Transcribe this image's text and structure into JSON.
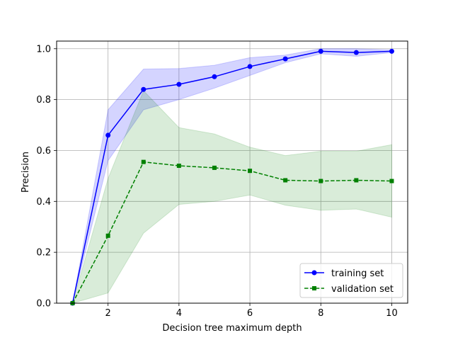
{
  "chart_data": {
    "type": "line",
    "title": "",
    "xlabel": "Decision tree maximum depth",
    "ylabel": "Precision",
    "xlim": [
      0.55,
      10.45
    ],
    "ylim": [
      0.0,
      1.03
    ],
    "xticks": [
      2,
      4,
      6,
      8,
      10
    ],
    "xtick_labels": [
      "2",
      "4",
      "6",
      "8",
      "10"
    ],
    "yticks": [
      0.0,
      0.2,
      0.4,
      0.6,
      0.8,
      1.0
    ],
    "ytick_labels": [
      "0.0",
      "0.2",
      "0.4",
      "0.6",
      "0.8",
      "1.0"
    ],
    "grid": true,
    "legend_position": "bottom-right",
    "x": [
      1,
      2,
      3,
      4,
      5,
      6,
      7,
      8,
      9,
      10
    ],
    "series": [
      {
        "name": "training set",
        "color": "#0000ff",
        "line_style": "solid",
        "marker": "circle",
        "values": [
          0.0,
          0.66,
          0.84,
          0.86,
          0.89,
          0.93,
          0.96,
          0.99,
          0.985,
          0.99
        ],
        "band_lower": [
          0.0,
          0.56,
          0.76,
          0.8,
          0.845,
          0.895,
          0.945,
          0.98,
          0.97,
          0.985
        ],
        "band_upper": [
          0.0,
          0.76,
          0.92,
          0.922,
          0.935,
          0.965,
          0.975,
          1.0,
          1.0,
          0.995
        ],
        "band_color": "#0000ff",
        "band_opacity": 0.17
      },
      {
        "name": "validation set",
        "color": "#008000",
        "line_style": "dashed",
        "marker": "square",
        "values": [
          0.0,
          0.265,
          0.555,
          0.54,
          0.532,
          0.52,
          0.483,
          0.48,
          0.483,
          0.48
        ],
        "band_lower": [
          0.0,
          0.04,
          0.275,
          0.388,
          0.4,
          0.425,
          0.385,
          0.365,
          0.37,
          0.338
        ],
        "band_upper": [
          0.0,
          0.49,
          0.835,
          0.69,
          0.665,
          0.613,
          0.58,
          0.597,
          0.597,
          0.623
        ],
        "band_color": "#008000",
        "band_opacity": 0.15
      }
    ]
  }
}
